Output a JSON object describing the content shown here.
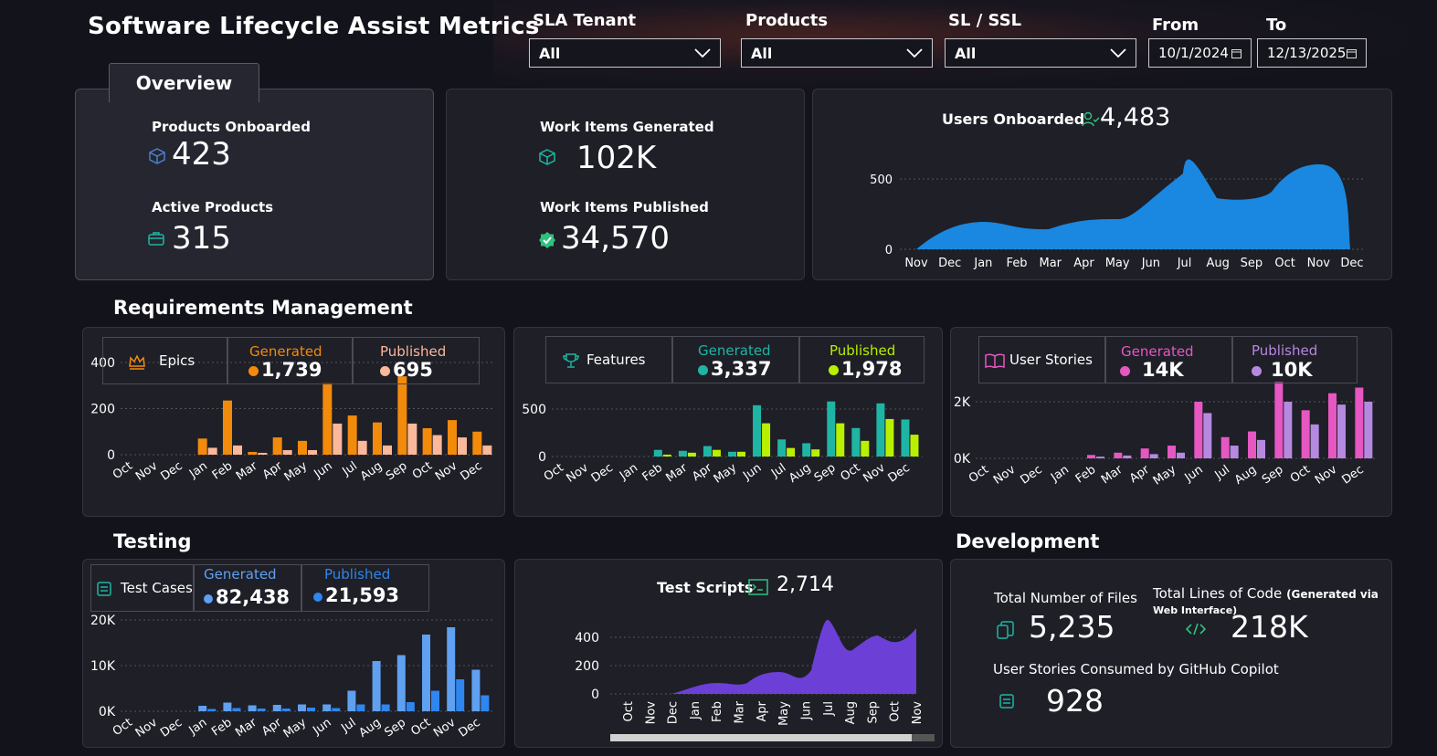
{
  "header": {
    "title": "Software Lifecycle Assist Metrics"
  },
  "filters": {
    "sla_tenant": {
      "label": "SLA Tenant",
      "value": "All"
    },
    "products": {
      "label": "Products",
      "value": "All"
    },
    "sl_ssl": {
      "label": "SL / SSL",
      "value": "All"
    },
    "from": {
      "label": "From",
      "value": "10/1/2024"
    },
    "to": {
      "label": "To",
      "value": "12/13/2025"
    }
  },
  "overview": {
    "tab": "Overview",
    "products_onboarded_label": "Products Onboarded",
    "products_onboarded": "423",
    "active_products_label": "Active Products",
    "active_products": "315"
  },
  "work_items": {
    "generated_label": "Work Items Generated",
    "generated": "102K",
    "published_label": "Work Items Published",
    "published": "34,570"
  },
  "users": {
    "label": "Users Onboarded",
    "value": "4,483",
    "chart_data": {
      "type": "area",
      "x": [
        "Nov",
        "Dec",
        "Jan",
        "Feb",
        "Mar",
        "Apr",
        "May",
        "Jun",
        "Jul",
        "Aug",
        "Sep",
        "Oct",
        "Nov",
        "Dec"
      ],
      "yticks": [
        "500",
        "0"
      ],
      "color": "#1a87e0"
    }
  },
  "sections": {
    "requirements": "Requirements Management",
    "testing": "Testing",
    "development": "Development"
  },
  "epics": {
    "label": "Epics",
    "gen_label": "Generated",
    "gen_value": "1,739",
    "pub_label": "Published",
    "pub_value": "695",
    "chart_data": {
      "type": "bar",
      "categories": [
        "Oct",
        "Nov",
        "Dec",
        "Jan",
        "Feb",
        "Mar",
        "Apr",
        "May",
        "Jun",
        "Jul",
        "Aug",
        "Sep",
        "Oct",
        "Nov",
        "Dec"
      ],
      "yticks": [
        "400",
        "200",
        "0"
      ],
      "ymax": 400,
      "series": [
        {
          "name": "Generated",
          "color": "#f28a0c",
          "values": [
            0,
            0,
            0,
            70,
            235,
            12,
            75,
            60,
            310,
            170,
            140,
            340,
            115,
            150,
            100
          ]
        },
        {
          "name": "Published",
          "color": "#fbb89a",
          "values": [
            0,
            0,
            0,
            30,
            40,
            8,
            20,
            20,
            135,
            60,
            40,
            135,
            85,
            75,
            40
          ]
        }
      ]
    }
  },
  "features": {
    "label": "Features",
    "gen_label": "Generated",
    "gen_value": "3,337",
    "pub_label": "Published",
    "pub_value": "1,978",
    "chart_data": {
      "type": "bar",
      "categories": [
        "Oct",
        "Nov",
        "Dec",
        "Jan",
        "Feb",
        "Mar",
        "Apr",
        "May",
        "Jun",
        "Jul",
        "Aug",
        "Sep",
        "Oct",
        "Nov",
        "Dec"
      ],
      "yticks": [
        "500",
        "0"
      ],
      "ymax": 700,
      "series": [
        {
          "name": "Generated",
          "color": "#1fb5a4",
          "values": [
            0,
            0,
            0,
            0,
            70,
            60,
            110,
            50,
            540,
            180,
            140,
            580,
            300,
            560,
            390
          ]
        },
        {
          "name": "Published",
          "color": "#b8f000",
          "values": [
            0,
            0,
            0,
            0,
            20,
            40,
            70,
            50,
            350,
            90,
            75,
            350,
            165,
            395,
            230
          ]
        }
      ]
    }
  },
  "user_stories": {
    "label": "User Stories",
    "gen_label": "Generated",
    "gen_value": "14K",
    "pub_label": "Published",
    "pub_value": "10K",
    "chart_data": {
      "type": "bar",
      "categories": [
        "Oct",
        "Nov",
        "Dec",
        "Jan",
        "Feb",
        "Mar",
        "Apr",
        "May",
        "Jun",
        "Jul",
        "Aug",
        "Sep",
        "Oct",
        "Nov",
        "Dec"
      ],
      "yticks": [
        "2K",
        "0K"
      ],
      "ymax": 2700,
      "series": [
        {
          "name": "Generated",
          "color": "#e657c2",
          "values": [
            0,
            0,
            0,
            0,
            120,
            200,
            350,
            450,
            2000,
            750,
            950,
            2700,
            1700,
            2300,
            2500
          ]
        },
        {
          "name": "Published",
          "color": "#b689e0",
          "values": [
            0,
            0,
            0,
            0,
            60,
            100,
            150,
            200,
            1600,
            450,
            650,
            2000,
            1200,
            1900,
            2000
          ]
        }
      ]
    }
  },
  "test_cases": {
    "label": "Test Cases",
    "gen_label": "Generated",
    "gen_value": "82,438",
    "pub_label": "Published",
    "pub_value": "21,593",
    "chart_data": {
      "type": "bar",
      "categories": [
        "Oct",
        "Nov",
        "Dec",
        "Jan",
        "Feb",
        "Mar",
        "Apr",
        "May",
        "Jun",
        "Jul",
        "Aug",
        "Sep",
        "Oct",
        "Nov",
        "Dec"
      ],
      "yticks": [
        "20K",
        "10K",
        "0K"
      ],
      "ymax": 20000,
      "series": [
        {
          "name": "Generated",
          "color": "#5fa0f0",
          "values": [
            0,
            0,
            0,
            1200,
            1900,
            1300,
            1400,
            1500,
            1500,
            4500,
            11000,
            12300,
            16800,
            18400,
            9100
          ]
        },
        {
          "name": "Published",
          "color": "#2e86ee",
          "values": [
            0,
            0,
            0,
            500,
            700,
            600,
            600,
            800,
            700,
            1500,
            1500,
            2000,
            4500,
            7000,
            3500
          ]
        }
      ]
    }
  },
  "test_scripts": {
    "label": "Test Scripts",
    "value": "2,714",
    "chart_data": {
      "type": "area",
      "x": [
        "Oct",
        "Nov",
        "Dec",
        "Jan",
        "Feb",
        "Mar",
        "Apr",
        "May",
        "Jun",
        "Jul",
        "Aug",
        "Sep",
        "Oct",
        "Nov"
      ],
      "yticks": [
        "400",
        "200",
        "0"
      ],
      "color": "#6c3fd6"
    }
  },
  "development": {
    "files_label": "Total Number of Files",
    "files": "5,235",
    "loc_label": "Total Lines of Code",
    "loc_note": "(Generated via",
    "loc_note2": "Web Interface)",
    "loc": "218K",
    "copilot_label": "User Stories Consumed by GitHub Copilot",
    "copilot": "928"
  }
}
